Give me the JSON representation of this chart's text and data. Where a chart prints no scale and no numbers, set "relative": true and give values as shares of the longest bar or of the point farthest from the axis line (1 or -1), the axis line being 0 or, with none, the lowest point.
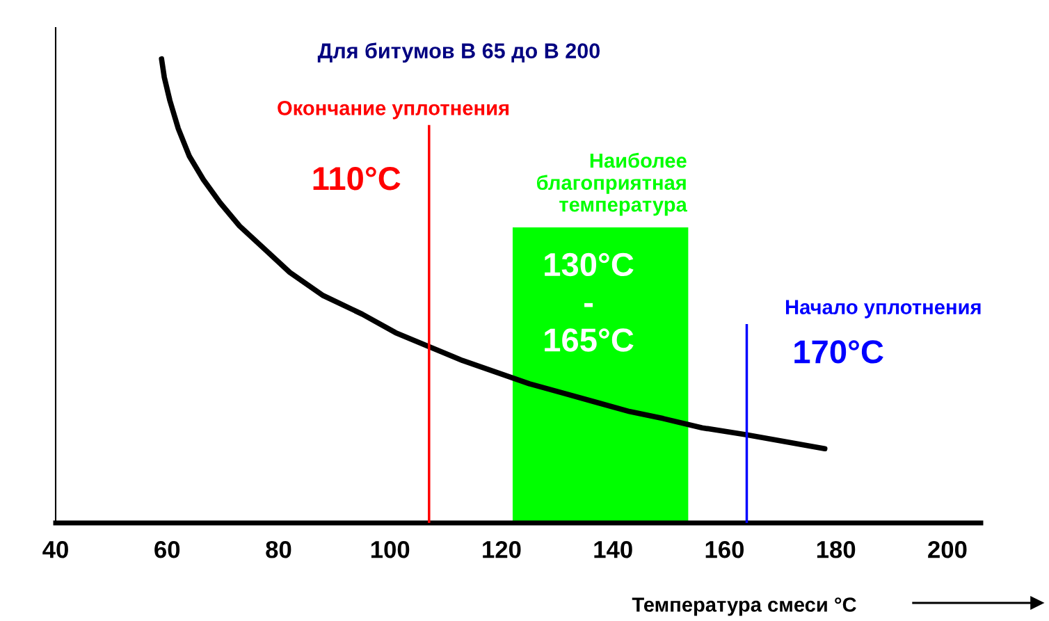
{
  "chart_data": {
    "type": "line",
    "title": "Для битумов В 65 до В 200",
    "xlabel": "Температура смеси °C",
    "relative": true,
    "x": [
      59,
      59.5,
      60.5,
      62,
      64,
      66.5,
      69.5,
      73,
      77.5,
      82,
      88,
      95,
      101,
      107,
      113,
      119,
      125,
      131,
      137,
      143,
      149,
      156,
      164,
      171,
      178
    ],
    "series": [
      {
        "color": "#000000",
        "values": [
          1.0,
          0.96,
          0.91,
          0.85,
          0.79,
          0.74,
          0.69,
          0.64,
          0.59,
          0.54,
          0.49,
          0.45,
          0.41,
          0.38,
          0.35,
          0.325,
          0.3,
          0.28,
          0.26,
          0.24,
          0.225,
          0.205,
          0.19,
          0.175,
          0.16
        ]
      }
    ],
    "xlim": [
      40,
      206
    ],
    "xticks": [
      40,
      60,
      80,
      100,
      120,
      140,
      160,
      180,
      200
    ],
    "grid": false,
    "legend": false,
    "marker": "none",
    "line_style": "solid",
    "ref_lines": [
      {
        "axis": "x",
        "value": 107,
        "label": "Окончание уплотнения",
        "color": "#ff0000"
      },
      {
        "axis": "x",
        "value": 164,
        "label": "Начало уплотнения",
        "color": "#0000ff"
      }
    ],
    "bands": [
      {
        "axis": "x",
        "from": 122,
        "to": 153.5,
        "label": "Наиболее\nблагоприятная\nтемпература",
        "color": "#00ff00"
      }
    ],
    "annotations": [
      "110°C",
      "130°C\n-\n165°C",
      "170°C"
    ]
  }
}
